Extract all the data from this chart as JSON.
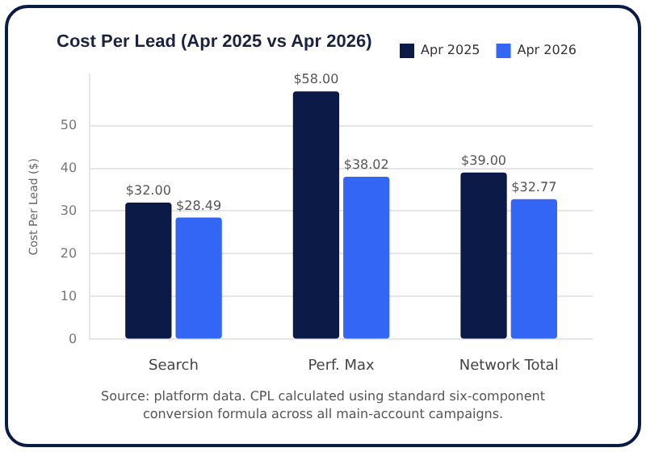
{
  "chart_data": {
    "type": "bar",
    "title": "Cost Per Lead (Apr 2025 vs Apr 2026)",
    "ylabel": "Cost Per Lead ($)",
    "categories": [
      "Search",
      "Perf. Max",
      "Network Total"
    ],
    "series": [
      {
        "name": "Apr 2025",
        "color": "#0c1a47",
        "values": [
          32,
          58,
          39
        ],
        "value_labels": [
          "$32.00",
          "$58.00",
          "$39.00"
        ]
      },
      {
        "name": "Apr 2026",
        "color": "#3366f5",
        "values": [
          28.49,
          38.02,
          32.77
        ],
        "value_labels": [
          "$28.49",
          "$38.02",
          "$32.77"
        ]
      }
    ],
    "ylim": [
      0,
      62
    ],
    "yticks": [
      0,
      10,
      20,
      30,
      40,
      50
    ],
    "grid": "y",
    "legend": "top right",
    "annotations": [
      "Source: platform data. CPL calculated using standard six-component conversion formula across all main-account campaigns."
    ]
  }
}
